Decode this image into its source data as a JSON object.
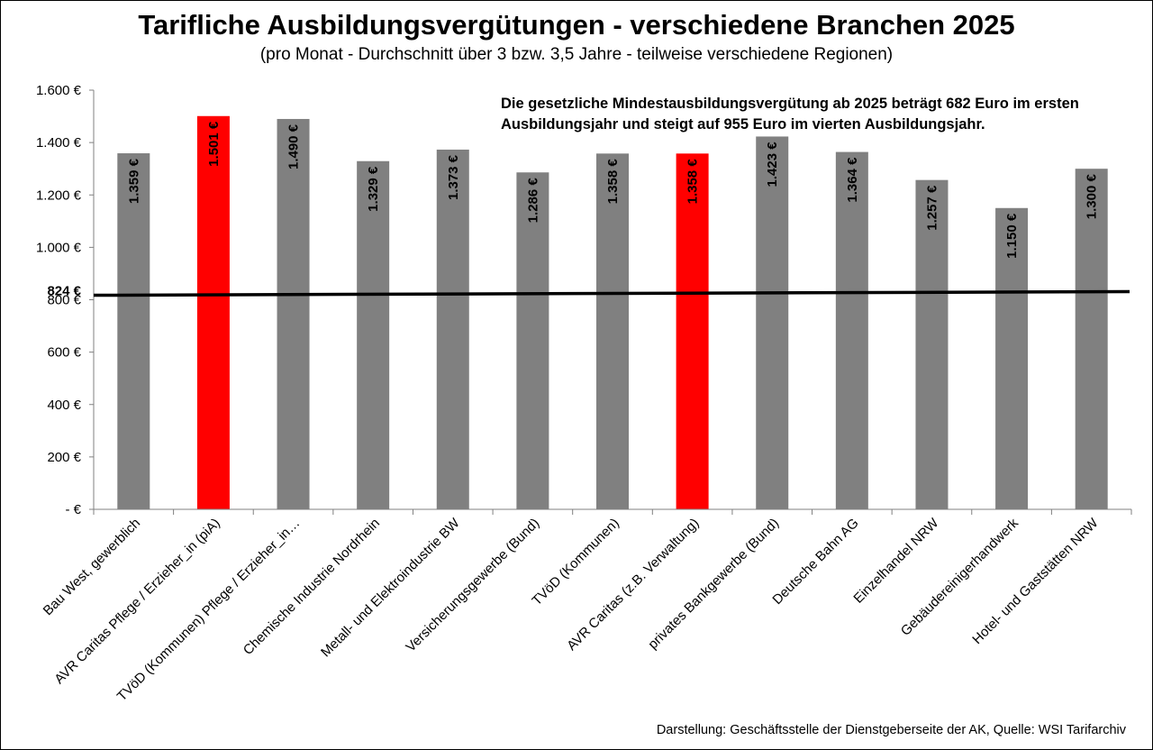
{
  "title": "Tarifliche Ausbildungsvergütungen - verschiedene Branchen 2025",
  "subtitle": "(pro Monat - Durchschnitt über 3 bzw. 3,5 Jahre - teilweise verschiedene Regionen)",
  "annotation": "Die gesetzliche Mindestausbildungsvergütung ab 2025 beträgt 682 Euro im ersten Ausbildungsjahr und steigt auf 955 Euro im vierten Ausbildungsjahr.",
  "source": "Darstellung: Geschäftsstelle der Dienstgeberseite der AK, Quelle: WSI Tarifarchiv",
  "colors": {
    "default_bar": "#808080",
    "highlight_bar": "#ff0000",
    "reference_line": "#000000"
  },
  "chart_data": {
    "type": "bar",
    "title": "Tarifliche Ausbildungsvergütungen - verschiedene Branchen 2025",
    "subtitle": "(pro Monat - Durchschnitt über 3 bzw. 3,5 Jahre - teilweise verschiedene Regionen)",
    "categories": [
      "Bau West, gewerblich",
      "AVR Caritas Pflege / Erzieher_in (piA)",
      "TVöD (Kommunen) Pflege / Erzieher_in…",
      "Chemische Industrie Nordrhein",
      "Metall- und Elektroindustrie BW",
      "Versicherungsgewerbe (Bund)",
      "TVöD (Kommunen)",
      "AVR Caritas (z.B. Verwaltung)",
      "privates Bankgewerbe (Bund)",
      "Deutsche Bahn AG",
      "Einzelhandel NRW",
      "Gebäudereinigerhandwerk",
      "Hotel- und Gaststätten NRW"
    ],
    "values": [
      1359,
      1501,
      1490,
      1329,
      1373,
      1286,
      1358,
      1358,
      1423,
      1364,
      1257,
      1150,
      1300
    ],
    "value_labels": [
      "1.359 €",
      "1.501 €",
      "1.490 €",
      "1.329 €",
      "1.373 €",
      "1.286 €",
      "1.358 €",
      "1.358 €",
      "1.423 €",
      "1.364 €",
      "1.257 €",
      "1.150 €",
      "1.300 €"
    ],
    "highlighted": [
      false,
      true,
      false,
      false,
      false,
      false,
      false,
      true,
      false,
      false,
      false,
      false,
      false
    ],
    "ylim": [
      0,
      1600
    ],
    "yticks": [
      0,
      200,
      400,
      600,
      800,
      1000,
      1200,
      1400,
      1600
    ],
    "ytick_labels": [
      "-   €",
      "200 €",
      "400 €",
      "600 €",
      "800 €",
      "1.000 €",
      "1.200 €",
      "1.400 €",
      "1.600 €"
    ],
    "reference_line": {
      "value": 824,
      "label": "824 €"
    },
    "grid": false,
    "legend": "none"
  }
}
